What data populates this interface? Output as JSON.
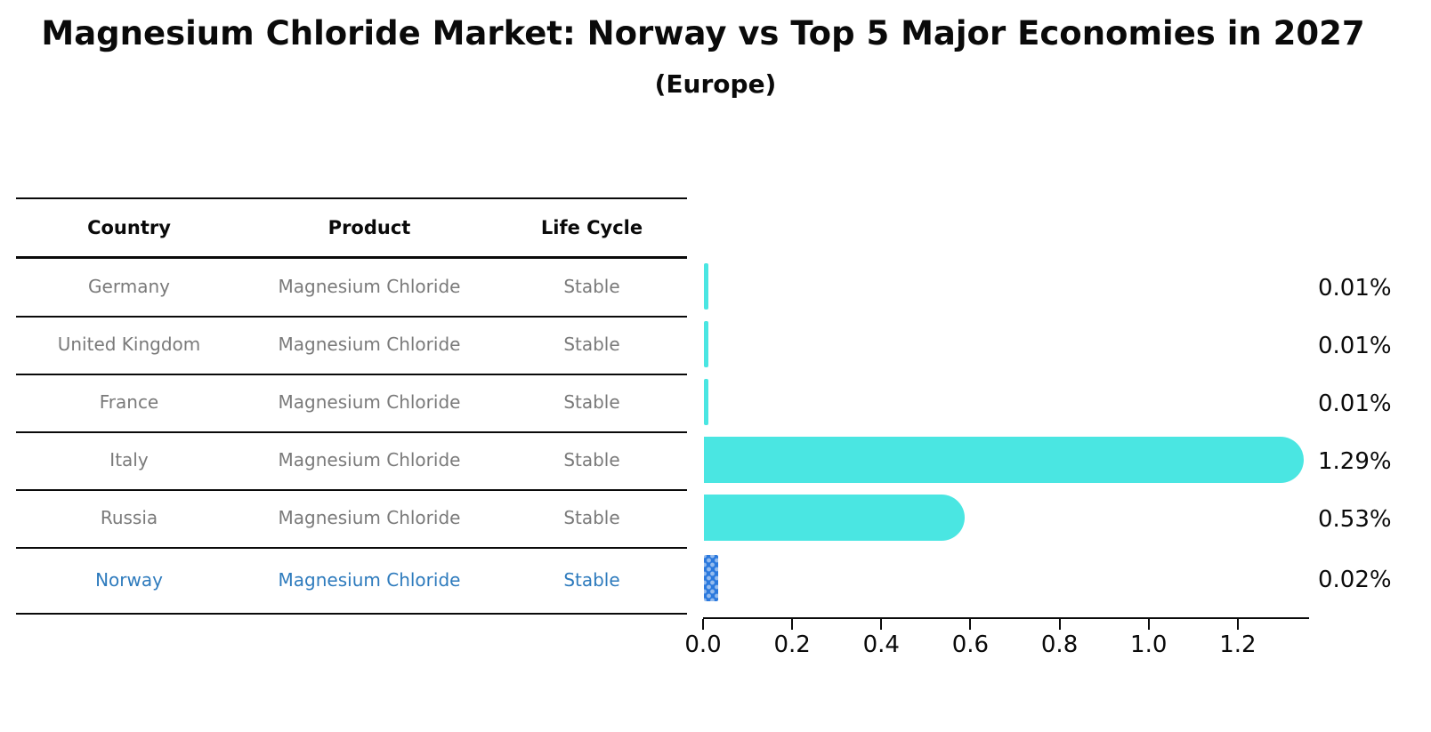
{
  "title": "Magnesium Chloride Market: Norway vs Top 5 Major Economies in 2027",
  "subtitle": "(Europe)",
  "table": {
    "headers": {
      "country": "Country",
      "product": "Product",
      "life_cycle": "Life Cycle"
    },
    "rows": [
      {
        "country": "Germany",
        "product": "Magnesium Chloride",
        "life_cycle": "Stable",
        "highlight": false
      },
      {
        "country": "United Kingdom",
        "product": "Magnesium Chloride",
        "life_cycle": "Stable",
        "highlight": false
      },
      {
        "country": "France",
        "product": "Magnesium Chloride",
        "life_cycle": "Stable",
        "highlight": false
      },
      {
        "country": "Italy",
        "product": "Magnesium Chloride",
        "life_cycle": "Stable",
        "highlight": false
      },
      {
        "country": "Russia",
        "product": "Magnesium Chloride",
        "life_cycle": "Stable",
        "highlight": false
      },
      {
        "country": "Norway",
        "product": "Magnesium Chloride",
        "life_cycle": "Stable",
        "highlight": true
      }
    ]
  },
  "chart_data": {
    "type": "bar",
    "orientation": "horizontal",
    "title": "Magnesium Chloride Market: Norway vs Top 5 Major Economies in 2027",
    "subtitle": "(Europe)",
    "categories": [
      "Germany",
      "United Kingdom",
      "France",
      "Italy",
      "Russia",
      "Norway"
    ],
    "values": [
      0.01,
      0.01,
      0.01,
      1.29,
      0.53,
      0.02
    ],
    "value_labels": [
      "0.01%",
      "0.01%",
      "0.01%",
      "1.29%",
      "0.53%",
      "0.02%"
    ],
    "unit": "%",
    "xticks": [
      0.0,
      0.2,
      0.4,
      0.6,
      0.8,
      1.0,
      1.2
    ],
    "xtick_labels": [
      "0.0",
      "0.2",
      "0.4",
      "0.6",
      "0.8",
      "1.0",
      "1.2"
    ],
    "xlim": [
      0,
      1.358
    ],
    "grid": false,
    "legend": false,
    "bar_color": "#4ae6e2",
    "highlight_bar_color": "#2b79dd",
    "highlight_text_color": "#2e7bbd",
    "highlight_index": 5
  }
}
